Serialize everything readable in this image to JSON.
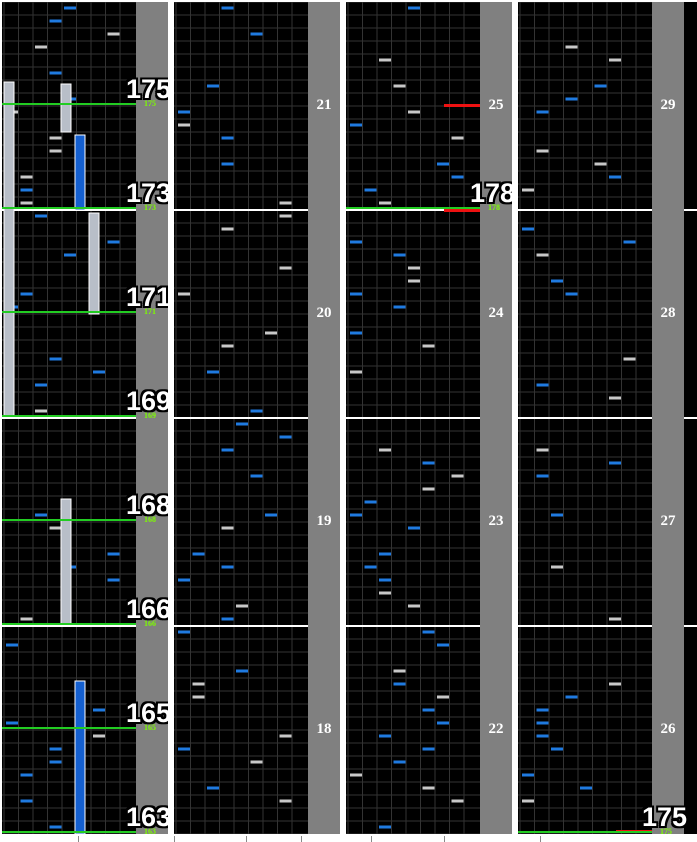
{
  "chart_data": {
    "type": "rhythm-game-chart",
    "colors": {
      "background": "#000000",
      "grid_line": "#333333",
      "measure_line": "#ffffff",
      "bpm_line": "#22cc22",
      "lane_panel": "#808080",
      "note_blue": "#1f7ae0",
      "note_white": "#c8c8c8",
      "long_blue": "#1560d0",
      "long_white": "#b8bec8",
      "red_marker": "#ee1111"
    },
    "columns": [
      {
        "name": "column-1",
        "measures": [],
        "bpm_markers": [
          {
            "value": "175",
            "small": "175",
            "y_frac": 0.125
          },
          {
            "value": "173",
            "small": "173",
            "y_frac": 0.25
          },
          {
            "value": "171",
            "small": "171",
            "y_frac": 0.375
          },
          {
            "value": "169",
            "small": "169",
            "y_frac": 0.5
          },
          {
            "value": "168",
            "small": "168",
            "y_frac": 0.625
          },
          {
            "value": "166",
            "small": "166",
            "y_frac": 0.75
          },
          {
            "value": "165",
            "small": "165",
            "y_frac": 0.875
          },
          {
            "value": "163",
            "small": "163",
            "y_frac": 1.0
          }
        ]
      },
      {
        "name": "column-2",
        "measures": [
          "21",
          "20",
          "19",
          "18"
        ]
      },
      {
        "name": "column-3",
        "measures": [
          "25",
          "24",
          "23",
          "22"
        ],
        "bpm_markers": [
          {
            "value": "178",
            "small": "178",
            "y_frac": 0.25
          }
        ]
      },
      {
        "name": "column-4",
        "measures": [
          "29",
          "28",
          "27",
          "26"
        ],
        "bpm_markers": [
          {
            "value": "175",
            "small": "175",
            "y_frac": 1.0
          }
        ]
      }
    ]
  }
}
